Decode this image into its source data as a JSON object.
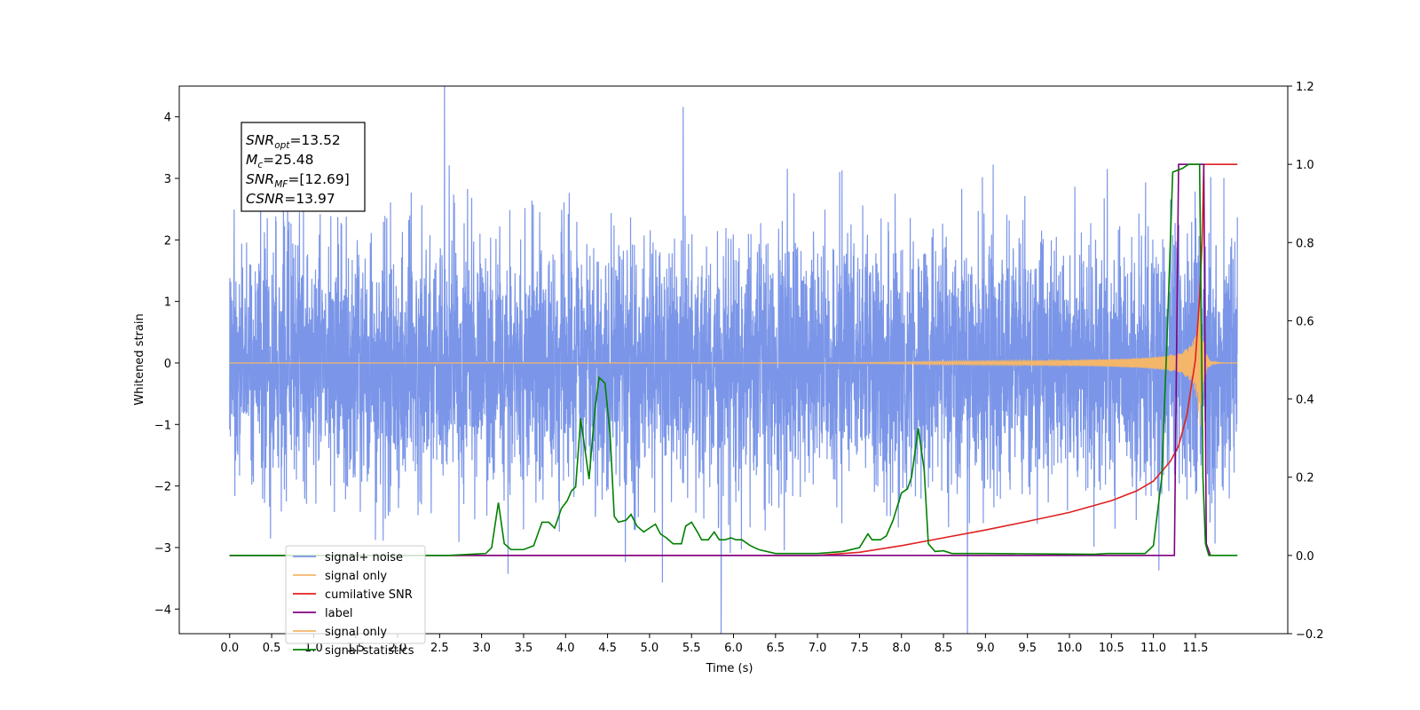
{
  "chart_data": {
    "type": "line",
    "xlabel": "Time (s)",
    "ylabel_left": "Whitened strain",
    "ylabel_right": "",
    "x_ticks": [
      "0.0",
      "0.5",
      "1.0",
      "1.5",
      "2.0",
      "2.5",
      "3.0",
      "3.5",
      "4.0",
      "4.5",
      "5.0",
      "5.5",
      "6.0",
      "6.5",
      "7.0",
      "7.5",
      "8.0",
      "8.5",
      "9.0",
      "9.5",
      "10.0",
      "10.5",
      "11.0",
      "11.5"
    ],
    "xlim": [
      -0.6,
      12.6
    ],
    "ylim_left": [
      -4.4,
      4.5
    ],
    "y_ticks_left": [
      "−4",
      "−3",
      "−2",
      "−1",
      "0",
      "1",
      "2",
      "3",
      "4"
    ],
    "ylim_right": [
      -0.2,
      1.2
    ],
    "y_ticks_right": [
      "−0.2",
      "0.0",
      "0.2",
      "0.4",
      "0.6",
      "0.8",
      "1.0",
      "1.2"
    ],
    "grid": false,
    "legend_position": "lower-left",
    "annotation": {
      "lines": [
        {
          "sym": "SNR",
          "sub": "opt",
          "rest": "=13.52"
        },
        {
          "sym": "M",
          "sub": "c",
          "rest": "=25.48"
        },
        {
          "sym": "SNR",
          "sub": "MF",
          "rest": "=[12.69]"
        },
        {
          "sym": "CSNR",
          "sub": "",
          "rest": "=13.97"
        }
      ]
    },
    "series": [
      {
        "name": "signal+ noise",
        "axis": "left",
        "color": "#7b96e8",
        "noise": {
          "x_range": [
            0.0,
            12.0
          ],
          "sigma": 1.0
        }
      },
      {
        "name": "signal only",
        "axis": "left",
        "color": "#f4b66a",
        "chirp": {
          "x_start": 7.0,
          "x_peak": 11.55,
          "x_end": 12.0,
          "peak_amplitude": 1.2
        }
      },
      {
        "name": "cumilative SNR",
        "axis": "right",
        "color": "#e02020",
        "points": [
          [
            0.0,
            0.0
          ],
          [
            6.0,
            0.0
          ],
          [
            7.0,
            0.0
          ],
          [
            7.5,
            0.008
          ],
          [
            8.0,
            0.025
          ],
          [
            8.5,
            0.045
          ],
          [
            9.0,
            0.065
          ],
          [
            9.5,
            0.087
          ],
          [
            10.0,
            0.11
          ],
          [
            10.5,
            0.14
          ],
          [
            10.8,
            0.165
          ],
          [
            11.0,
            0.19
          ],
          [
            11.2,
            0.24
          ],
          [
            11.3,
            0.28
          ],
          [
            11.4,
            0.36
          ],
          [
            11.5,
            0.5
          ],
          [
            11.55,
            0.66
          ],
          [
            11.58,
            0.8
          ],
          [
            11.6,
            1.0
          ],
          [
            12.0,
            1.0
          ]
        ]
      },
      {
        "name": "label",
        "axis": "right",
        "color": "#800080",
        "points": [
          [
            0.0,
            0.0
          ],
          [
            11.25,
            0.0
          ],
          [
            11.3,
            1.0
          ],
          [
            11.6,
            1.0
          ],
          [
            11.63,
            0.03
          ],
          [
            11.68,
            0.0
          ]
        ]
      },
      {
        "name": "signal only",
        "axis": "right",
        "color": "#f4b66a",
        "legend_only": true,
        "points": []
      },
      {
        "name": "signal statistics",
        "axis": "right",
        "color": "#008000",
        "points": [
          [
            0.0,
            0.0
          ],
          [
            2.6,
            0.0
          ],
          [
            3.05,
            0.005
          ],
          [
            3.12,
            0.02
          ],
          [
            3.2,
            0.135
          ],
          [
            3.27,
            0.03
          ],
          [
            3.35,
            0.015
          ],
          [
            3.5,
            0.015
          ],
          [
            3.62,
            0.025
          ],
          [
            3.72,
            0.085
          ],
          [
            3.8,
            0.085
          ],
          [
            3.87,
            0.07
          ],
          [
            3.95,
            0.12
          ],
          [
            4.02,
            0.14
          ],
          [
            4.07,
            0.165
          ],
          [
            4.12,
            0.175
          ],
          [
            4.18,
            0.35
          ],
          [
            4.28,
            0.195
          ],
          [
            4.35,
            0.375
          ],
          [
            4.4,
            0.455
          ],
          [
            4.47,
            0.44
          ],
          [
            4.53,
            0.31
          ],
          [
            4.58,
            0.1
          ],
          [
            4.63,
            0.085
          ],
          [
            4.72,
            0.09
          ],
          [
            4.78,
            0.105
          ],
          [
            4.85,
            0.075
          ],
          [
            4.93,
            0.06
          ],
          [
            5.0,
            0.07
          ],
          [
            5.07,
            0.08
          ],
          [
            5.13,
            0.055
          ],
          [
            5.2,
            0.045
          ],
          [
            5.28,
            0.03
          ],
          [
            5.38,
            0.03
          ],
          [
            5.43,
            0.075
          ],
          [
            5.5,
            0.085
          ],
          [
            5.57,
            0.06
          ],
          [
            5.62,
            0.04
          ],
          [
            5.7,
            0.04
          ],
          [
            5.77,
            0.06
          ],
          [
            5.83,
            0.04
          ],
          [
            5.9,
            0.04
          ],
          [
            5.97,
            0.045
          ],
          [
            6.03,
            0.04
          ],
          [
            6.1,
            0.04
          ],
          [
            6.2,
            0.025
          ],
          [
            6.3,
            0.015
          ],
          [
            6.5,
            0.005
          ],
          [
            7.0,
            0.005
          ],
          [
            7.3,
            0.01
          ],
          [
            7.5,
            0.02
          ],
          [
            7.6,
            0.055
          ],
          [
            7.65,
            0.04
          ],
          [
            7.75,
            0.04
          ],
          [
            7.82,
            0.05
          ],
          [
            7.9,
            0.09
          ],
          [
            8.0,
            0.16
          ],
          [
            8.07,
            0.17
          ],
          [
            8.12,
            0.2
          ],
          [
            8.2,
            0.325
          ],
          [
            8.27,
            0.22
          ],
          [
            8.32,
            0.03
          ],
          [
            8.4,
            0.01
          ],
          [
            8.5,
            0.012
          ],
          [
            8.6,
            0.005
          ],
          [
            9.0,
            0.005
          ],
          [
            10.3,
            0.003
          ],
          [
            10.45,
            0.005
          ],
          [
            10.9,
            0.005
          ],
          [
            11.0,
            0.025
          ],
          [
            11.1,
            0.2
          ],
          [
            11.17,
            0.6
          ],
          [
            11.23,
            0.98
          ],
          [
            11.35,
            0.99
          ],
          [
            11.42,
            1.0
          ],
          [
            11.55,
            1.0
          ],
          [
            11.59,
            0.2
          ],
          [
            11.62,
            0.03
          ],
          [
            11.66,
            0.0
          ],
          [
            12.0,
            0.0
          ]
        ]
      }
    ]
  }
}
